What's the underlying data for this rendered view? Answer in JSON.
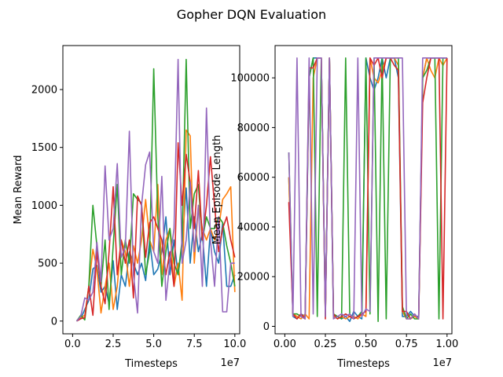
{
  "figure": {
    "title": "Gopher DQN Evaluation"
  },
  "colors": [
    "#1f77b4",
    "#ff7f0e",
    "#2ca02c",
    "#d62728",
    "#9467bd"
  ],
  "chart_data": [
    {
      "type": "line",
      "title": "",
      "xlabel": "Timesteps",
      "ylabel": "Mean Reward",
      "x_offset_text": "1e7",
      "xlim": [
        -0.06,
        1.03
      ],
      "ylim": [
        -110,
        2380
      ],
      "xticks": [
        0.0,
        0.25,
        0.5,
        0.75,
        1.0
      ],
      "xtick_labels": [
        "0.0",
        "2.5",
        "5.0",
        "7.5",
        "10.0"
      ],
      "yticks": [
        0,
        500,
        1000,
        1500,
        2000
      ],
      "ytick_labels": [
        "0",
        "500",
        "1000",
        "1500",
        "2000"
      ],
      "x_units": "1e7 timesteps",
      "x": [
        0.025,
        0.05,
        0.075,
        0.1,
        0.125,
        0.15,
        0.175,
        0.2,
        0.225,
        0.25,
        0.275,
        0.3,
        0.325,
        0.35,
        0.375,
        0.4,
        0.425,
        0.45,
        0.475,
        0.5,
        0.525,
        0.55,
        0.575,
        0.6,
        0.625,
        0.65,
        0.675,
        0.7,
        0.725,
        0.75,
        0.775,
        0.8,
        0.825,
        0.85,
        0.875,
        0.9,
        0.925,
        0.95,
        0.975,
        1.0
      ],
      "series": [
        {
          "values": [
            0,
            20,
            100,
            180,
            450,
            480,
            250,
            300,
            150,
            520,
            100,
            400,
            300,
            600,
            500,
            400,
            500,
            350,
            700,
            400,
            450,
            600,
            900,
            400,
            700,
            400,
            650,
            1150,
            500,
            900,
            600,
            750,
            300,
            800,
            600,
            500,
            850,
            300,
            300,
            400
          ]
        },
        {
          "values": [
            0,
            30,
            50,
            300,
            620,
            450,
            70,
            300,
            500,
            100,
            300,
            700,
            600,
            300,
            650,
            500,
            700,
            1050,
            700,
            600,
            1180,
            400,
            700,
            800,
            300,
            500,
            180,
            1650,
            1600,
            500,
            1000,
            800,
            700,
            800,
            700,
            800,
            1050,
            1100,
            1160,
            250
          ]
        },
        {
          "values": [
            0,
            50,
            10,
            300,
            1000,
            650,
            300,
            700,
            100,
            650,
            1180,
            400,
            700,
            500,
            1100,
            1050,
            1020,
            400,
            600,
            2180,
            900,
            300,
            600,
            800,
            500,
            400,
            700,
            2260,
            800,
            1100,
            1180,
            700,
            900,
            800,
            800,
            900,
            850,
            650,
            500,
            300
          ]
        },
        {
          "values": [
            0,
            20,
            30,
            300,
            50,
            600,
            300,
            150,
            600,
            1160,
            400,
            700,
            500,
            700,
            200,
            1080,
            1000,
            550,
            850,
            900,
            800,
            700,
            400,
            600,
            300,
            1540,
            1000,
            1440,
            1200,
            800,
            1300,
            700,
            1000,
            1420,
            1000,
            600,
            800,
            900,
            700,
            550
          ]
        },
        {
          "values": [
            0,
            40,
            200,
            180,
            250,
            680,
            340,
            1340,
            700,
            800,
            1360,
            550,
            640,
            1640,
            400,
            70,
            1000,
            1350,
            1460,
            600,
            500,
            1250,
            180,
            520,
            800,
            2260,
            500,
            700,
            1200,
            600,
            1000,
            300,
            1840,
            700,
            300,
            900,
            80,
            80,
            500,
            500
          ]
        }
      ]
    },
    {
      "type": "line",
      "title": "",
      "xlabel": "Timesteps",
      "ylabel": "Mean Episode Length",
      "x_offset_text": "1e7",
      "xlim": [
        -0.06,
        1.03
      ],
      "ylim": [
        -3000,
        113000
      ],
      "xticks": [
        0.0,
        0.25,
        0.5,
        0.75,
        1.0
      ],
      "xtick_labels": [
        "0.00",
        "0.25",
        "0.50",
        "0.75",
        "1.00"
      ],
      "yticks": [
        0,
        20000,
        40000,
        60000,
        80000,
        100000
      ],
      "ytick_labels": [
        "0",
        "20000",
        "40000",
        "60000",
        "80000",
        "100000"
      ],
      "x_units": "1e7 timesteps",
      "x": [
        0.025,
        0.05,
        0.075,
        0.1,
        0.125,
        0.15,
        0.175,
        0.2,
        0.225,
        0.25,
        0.275,
        0.3,
        0.325,
        0.35,
        0.375,
        0.4,
        0.425,
        0.45,
        0.475,
        0.5,
        0.525,
        0.55,
        0.575,
        0.6,
        0.625,
        0.65,
        0.675,
        0.7,
        0.725,
        0.75,
        0.775,
        0.8,
        0.825,
        0.85,
        0.875,
        0.9,
        0.925,
        0.95,
        0.975,
        1.0
      ],
      "series": [
        {
          "values": [
            60000,
            4000,
            3000,
            5000,
            4000,
            100000,
            108000,
            108000,
            108000,
            5000,
            108000,
            4000,
            4000,
            3000,
            4000,
            2000,
            6000,
            4000,
            3000,
            108000,
            100000,
            95000,
            100000,
            108000,
            100000,
            108000,
            108000,
            100000,
            4000,
            4000,
            6000,
            4000,
            4000,
            100000,
            108000,
            108000,
            108000,
            108000,
            108000,
            108000
          ]
        },
        {
          "values": [
            60000,
            5000,
            4000,
            3000,
            5000,
            3000,
            100000,
            108000,
            108000,
            4000,
            108000,
            4000,
            3000,
            4000,
            3000,
            4000,
            4000,
            3000,
            5000,
            4000,
            108000,
            100000,
            98000,
            103000,
            108000,
            108000,
            108000,
            105000,
            6000,
            3000,
            3000,
            4000,
            3000,
            100000,
            108000,
            103000,
            100000,
            108000,
            105000,
            108000
          ]
        },
        {
          "values": [
            70000,
            5000,
            5000,
            4000,
            3000,
            100000,
            108000,
            4000,
            108000,
            4000,
            108000,
            5000,
            4000,
            3000,
            108000,
            5000,
            3000,
            4000,
            6000,
            108000,
            5000,
            108000,
            2000,
            108000,
            3000,
            108000,
            108000,
            108000,
            8000,
            3000,
            5000,
            3000,
            3000,
            100000,
            103000,
            108000,
            108000,
            3000,
            108000,
            108000
          ]
        },
        {
          "values": [
            50000,
            5000,
            3000,
            5000,
            3000,
            104000,
            104000,
            108000,
            108000,
            3000,
            108000,
            5000,
            3000,
            4000,
            5000,
            4000,
            3000,
            4000,
            5000,
            6000,
            108000,
            105000,
            108000,
            100000,
            108000,
            108000,
            105000,
            103000,
            6000,
            6000,
            3000,
            5000,
            3000,
            90000,
            100000,
            108000,
            108000,
            108000,
            3000,
            108000
          ]
        },
        {
          "values": [
            70000,
            4000,
            108000,
            4000,
            3000,
            108000,
            5000,
            108000,
            108000,
            4000,
            108000,
            3000,
            4000,
            5000,
            4000,
            5000,
            3000,
            108000,
            4000,
            7000,
            6000,
            108000,
            108000,
            108000,
            108000,
            108000,
            108000,
            108000,
            108000,
            3000,
            3000,
            5000,
            3000,
            108000,
            108000,
            108000,
            108000,
            108000,
            108000,
            108000
          ]
        }
      ]
    }
  ]
}
